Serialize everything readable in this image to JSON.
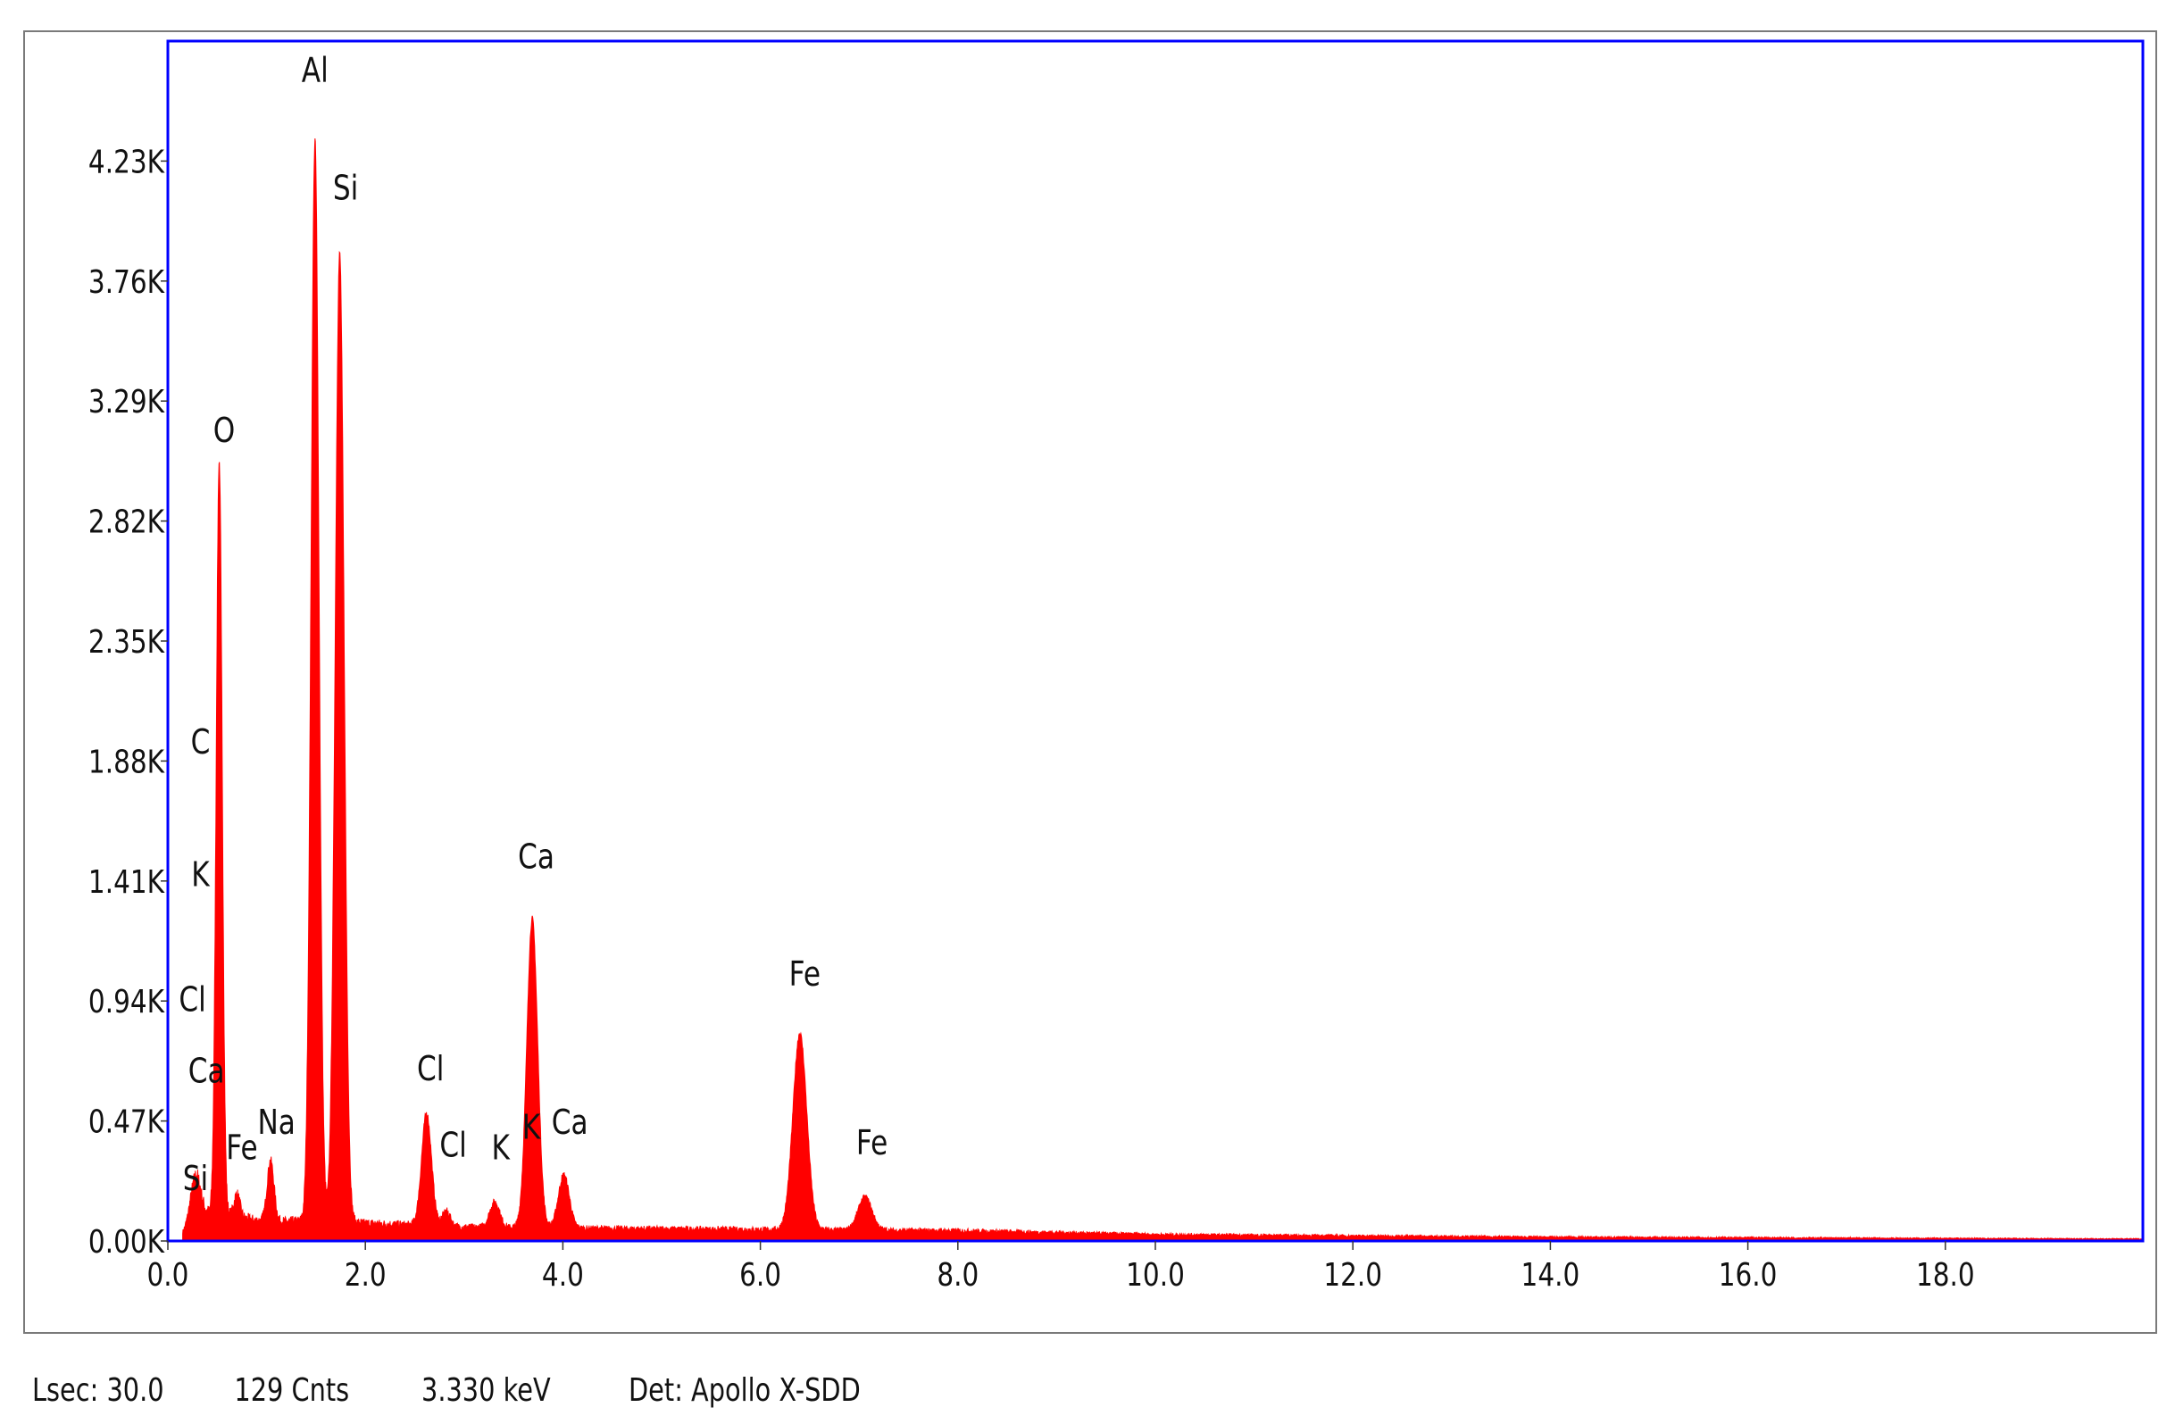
{
  "chart_data": {
    "type": "area",
    "title": "",
    "xlabel": "",
    "ylabel": "",
    "xlim": [
      0.0,
      20.0
    ],
    "ylim": [
      0,
      4700
    ],
    "x_ticks": [
      "0.0",
      "2.0",
      "4.0",
      "6.0",
      "8.0",
      "10.0",
      "12.0",
      "14.0",
      "16.0",
      "18.0"
    ],
    "x_tick_values": [
      0,
      2,
      4,
      6,
      8,
      10,
      12,
      14,
      16,
      18
    ],
    "y_ticks": [
      "0.00K",
      "0.47K",
      "0.94K",
      "1.41K",
      "1.88K",
      "2.35K",
      "2.82K",
      "3.29K",
      "3.76K",
      "4.23K"
    ],
    "y_tick_values": [
      0,
      470,
      940,
      1410,
      1880,
      2350,
      2820,
      3290,
      3760,
      4230
    ],
    "series": [
      {
        "color": "#ff0000",
        "peaks": [
          {
            "element": "C",
            "energy_kev": 0.28,
            "counts": 160,
            "width": 0.05
          },
          {
            "element": "O",
            "energy_kev": 0.52,
            "counts": 2950,
            "width": 0.03
          },
          {
            "element": "Fe",
            "energy_kev": 0.7,
            "counts": 90,
            "width": 0.03
          },
          {
            "element": "Na",
            "energy_kev": 1.04,
            "counts": 240,
            "width": 0.035
          },
          {
            "element": "Al",
            "energy_kev": 1.49,
            "counts": 4230,
            "width": 0.04
          },
          {
            "element": "Si",
            "energy_kev": 1.74,
            "counts": 3790,
            "width": 0.045
          },
          {
            "element": "Cl",
            "energy_kev": 2.62,
            "counts": 440,
            "width": 0.05
          },
          {
            "element": "Cl",
            "energy_kev": 2.82,
            "counts": 60,
            "width": 0.04
          },
          {
            "element": "K",
            "energy_kev": 3.31,
            "counts": 100,
            "width": 0.05
          },
          {
            "element": "Ca",
            "energy_kev": 3.69,
            "counts": 1210,
            "width": 0.055
          },
          {
            "element": "Ca",
            "energy_kev": 4.01,
            "counts": 210,
            "width": 0.055
          },
          {
            "element": "Fe",
            "energy_kev": 6.4,
            "counts": 770,
            "width": 0.07
          },
          {
            "element": "Fe",
            "energy_kev": 7.06,
            "counts": 130,
            "width": 0.07
          }
        ],
        "background": [
          [
            0.15,
            30
          ],
          [
            0.3,
            110
          ],
          [
            0.6,
            100
          ],
          [
            1.0,
            75
          ],
          [
            1.5,
            80
          ],
          [
            2.0,
            70
          ],
          [
            3.0,
            55
          ],
          [
            4.0,
            50
          ],
          [
            6.0,
            45
          ],
          [
            8.0,
            40
          ],
          [
            10.0,
            25
          ],
          [
            14.0,
            15
          ],
          [
            18.0,
            10
          ],
          [
            20.0,
            8
          ]
        ]
      }
    ],
    "peak_labels": [
      {
        "text": "Al",
        "energy_kev": 1.49,
        "counts": 4540
      },
      {
        "text": "Si",
        "energy_kev": 1.8,
        "counts": 4080
      },
      {
        "text": "O",
        "energy_kev": 0.57,
        "counts": 3130
      },
      {
        "text": "C",
        "energy_kev": 0.33,
        "counts": 1910
      },
      {
        "text": "K",
        "energy_kev": 0.33,
        "counts": 1390
      },
      {
        "text": "Cl",
        "energy_kev": 0.25,
        "counts": 900
      },
      {
        "text": "Ca",
        "energy_kev": 0.39,
        "counts": 620
      },
      {
        "text": "Si",
        "energy_kev": 0.28,
        "counts": 200
      },
      {
        "text": "Fe",
        "energy_kev": 0.75,
        "counts": 320
      },
      {
        "text": "Na",
        "energy_kev": 1.1,
        "counts": 420
      },
      {
        "text": "Cl",
        "energy_kev": 2.66,
        "counts": 630
      },
      {
        "text": "Cl",
        "energy_kev": 2.89,
        "counts": 330
      },
      {
        "text": "K",
        "energy_kev": 3.37,
        "counts": 320
      },
      {
        "text": "Ca",
        "energy_kev": 3.73,
        "counts": 1460
      },
      {
        "text": "K",
        "energy_kev": 3.68,
        "counts": 400
      },
      {
        "text": "Ca",
        "energy_kev": 4.07,
        "counts": 420
      },
      {
        "text": "Fe",
        "energy_kev": 6.45,
        "counts": 1000
      },
      {
        "text": "Fe",
        "energy_kev": 7.13,
        "counts": 340
      }
    ],
    "grid": false,
    "legend": "none"
  },
  "status_bar": {
    "lsec": "Lsec: 30.0",
    "cnts": "129 Cnts",
    "kev": "3.330 keV",
    "det": "Det: Apollo X-SDD"
  },
  "colors": {
    "plot_border": "#0000ff",
    "spectrum": "#ff0000",
    "frame": "#7a7a7a"
  }
}
